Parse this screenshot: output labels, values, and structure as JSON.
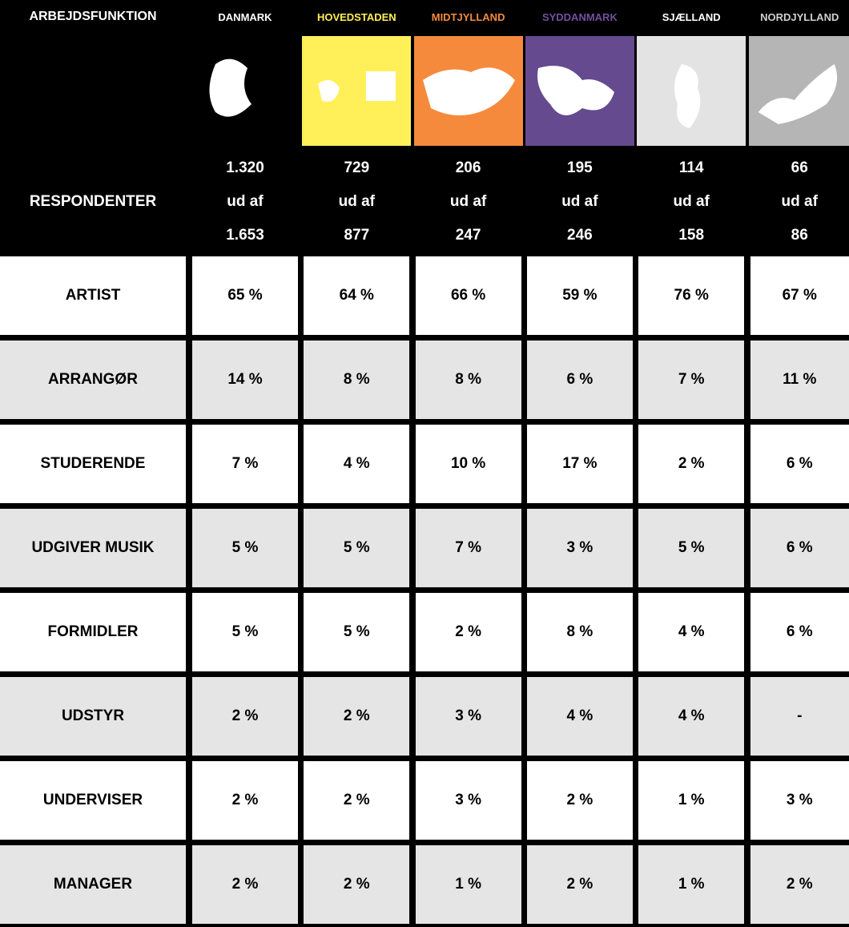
{
  "table": {
    "header_label": "ARBEJDSFUNKTION",
    "respondents_label": "RESPONDENTER",
    "columns": [
      {
        "name": "DANMARK",
        "color": "#ffffff",
        "tile": "#000000",
        "count": "1.320",
        "of": "ud af",
        "total": "1.653"
      },
      {
        "name": "HOVEDSTADEN",
        "color": "#fff055",
        "tile": "#fff05a",
        "count": "729",
        "of": "ud af",
        "total": "877"
      },
      {
        "name": "MIDTJYLLAND",
        "color": "#f58a3c",
        "tile": "#f58a3c",
        "count": "206",
        "of": "ud af",
        "total": "247"
      },
      {
        "name": "SYDDANMARK",
        "color": "#7050a0",
        "tile": "#654a8f",
        "count": "195",
        "of": "ud af",
        "total": "246"
      },
      {
        "name": "SJÆLLAND",
        "color": "#ffffff",
        "tile": "#e3e3e3",
        "count": "114",
        "of": "ud af",
        "total": "158"
      },
      {
        "name": "NORDJYLLAND",
        "color": "#cfcfcf",
        "tile": "#b5b5b5",
        "count": "66",
        "of": "ud af",
        "total": "86"
      }
    ],
    "rows": [
      [
        "ARTIST",
        "65 %",
        "64 %",
        "66 %",
        "59 %",
        "76 %",
        "67 %"
      ],
      [
        "ARRANGØR",
        "14 %",
        "8 %",
        "8 %",
        "6 %",
        "7 %",
        "11 %"
      ],
      [
        "STUDERENDE",
        "7 %",
        "4 %",
        "10 %",
        "17 %",
        "2 %",
        "6 %"
      ],
      [
        "UDGIVER MUSIK",
        "5 %",
        "5 %",
        "7 %",
        "3 %",
        "5 %",
        "6 %"
      ],
      [
        "FORMIDLER",
        "5 %",
        "5 %",
        "2 %",
        "8 %",
        "4 %",
        "6 %"
      ],
      [
        "UDSTYR",
        "2 %",
        "2 %",
        "3 %",
        "4 %",
        "4 %",
        "-"
      ],
      [
        "UNDERVISER",
        "2 %",
        "2 %",
        "3 %",
        "2 %",
        "1 %",
        "3 %"
      ],
      [
        "MANAGER",
        "2 %",
        "2 %",
        "1 %",
        "2 %",
        "1 %",
        "2 %"
      ]
    ]
  }
}
